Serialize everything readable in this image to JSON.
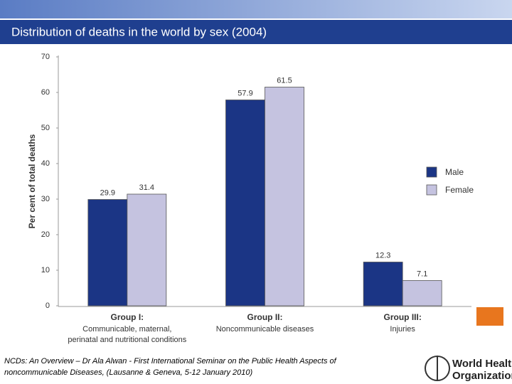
{
  "chart_data": {
    "type": "bar",
    "title": "Distribution of deaths in the world by sex (2004)",
    "y_label": "Per cent of total deaths",
    "categories": [
      "Group I:",
      "Group II:",
      "Group III:"
    ],
    "category_notes": [
      [
        "Communicable, maternal,",
        "perinatal and nutritional conditions"
      ],
      [
        "Noncommunicable diseases"
      ],
      [
        "Injuries"
      ]
    ],
    "series": [
      {
        "name": "Male",
        "color": "#1b3585",
        "values": [
          29.9,
          57.9,
          12.3
        ]
      },
      {
        "name": "Female",
        "color": "#c5c3e0",
        "values": [
          31.4,
          61.5,
          7.1
        ]
      }
    ],
    "ylim": [
      0,
      70
    ],
    "yticks": [
      0,
      10,
      20,
      30,
      40,
      50,
      60,
      70
    ],
    "grid": false,
    "legend": "right"
  },
  "footer": {
    "citation": [
      "NCDs: An Overview – Dr Ala Alwan - First International Seminar on the Public Health Aspects of",
      "noncommunicable Diseases, (Lausanne & Geneva, 5-12 January 2010)"
    ],
    "logo_text": [
      "World Health",
      "Organization"
    ]
  }
}
